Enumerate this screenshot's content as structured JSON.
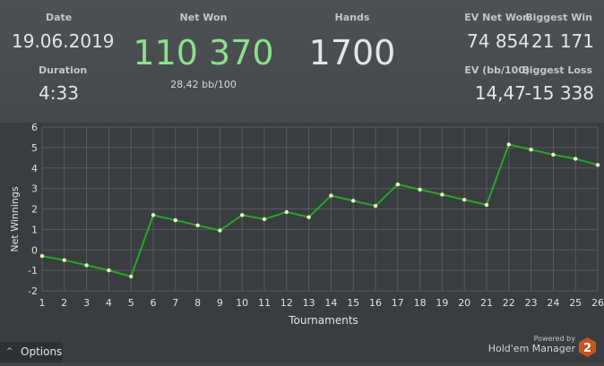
{
  "stats": {
    "date_label": "Date",
    "date_value": "19.06.2019",
    "duration_label": "Duration",
    "duration_value": "4:33",
    "net_won_label": "Net Won",
    "net_won_value": "110 370",
    "net_won_sub": "28,42 bb/100",
    "hands_label": "Hands",
    "hands_value": "1700",
    "ev_net_won_label": "EV Net Won",
    "ev_net_won_value": "74 854",
    "biggest_win_label": "Biggest Win",
    "biggest_win_value": "21 171",
    "ev_bb_label": "EV (bb/100)",
    "ev_bb_value": "14,47",
    "biggest_loss_label": "Biggest Loss",
    "biggest_loss_value": "-15 338"
  },
  "colors": {
    "net_won": "#8be08c",
    "line": "#2aa52a",
    "point": "#e6f7c4"
  },
  "chart_data": {
    "type": "line",
    "xlabel": "Tournaments",
    "ylabel": "Net Winnings",
    "ylim": [
      -2,
      6
    ],
    "yticks": [
      -2,
      -1,
      0,
      1,
      2,
      3,
      4,
      5,
      6
    ],
    "x": [
      1,
      2,
      3,
      4,
      5,
      6,
      7,
      8,
      9,
      10,
      11,
      12,
      13,
      14,
      15,
      16,
      17,
      18,
      19,
      20,
      21,
      22,
      23,
      24,
      25,
      26
    ],
    "series": [
      {
        "values": [
          -0.3,
          -0.5,
          -0.75,
          -1.0,
          -1.3,
          1.7,
          1.45,
          1.2,
          0.95,
          1.7,
          1.5,
          1.85,
          1.6,
          2.65,
          2.4,
          2.15,
          3.2,
          2.95,
          2.7,
          2.45,
          2.2,
          5.15,
          4.9,
          4.65,
          4.45,
          4.15
        ]
      }
    ],
    "grid": true
  },
  "footer": {
    "options_label": "Options",
    "options_caret": "^",
    "powered_by": "Powered by",
    "product": "Hold'em Manager",
    "logo_text": "2"
  }
}
